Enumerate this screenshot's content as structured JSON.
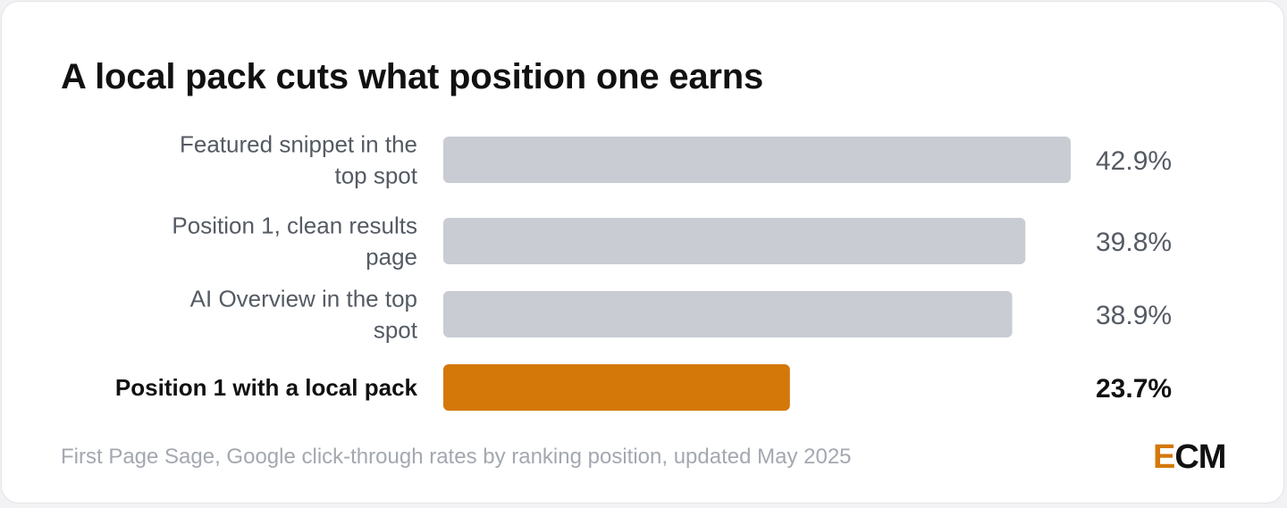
{
  "title": "A local pack cuts what position one earns",
  "source": "First Page Sage, Google click-through rates by ranking position, updated May 2025",
  "brand": {
    "accent_letter": "E",
    "rest": "CM",
    "accent_color": "#d4780a"
  },
  "colors": {
    "bar_default": "#c9ccd3",
    "bar_highlight": "#d4780a"
  },
  "chart_data": {
    "type": "bar",
    "orientation": "horizontal",
    "title": "A local pack cuts what position one earns",
    "xlabel": "",
    "ylabel": "",
    "value_format": "percent",
    "xlim": [
      0,
      42.9
    ],
    "grid": false,
    "categories": [
      "Featured snippet in the top spot",
      "Position 1, clean results page",
      "AI Overview in the top spot",
      "Position 1 with a local pack"
    ],
    "values": [
      42.9,
      39.8,
      38.9,
      23.7
    ],
    "value_labels": [
      "42.9%",
      "39.8%",
      "38.9%",
      "23.7%"
    ],
    "highlight_index": 3
  }
}
